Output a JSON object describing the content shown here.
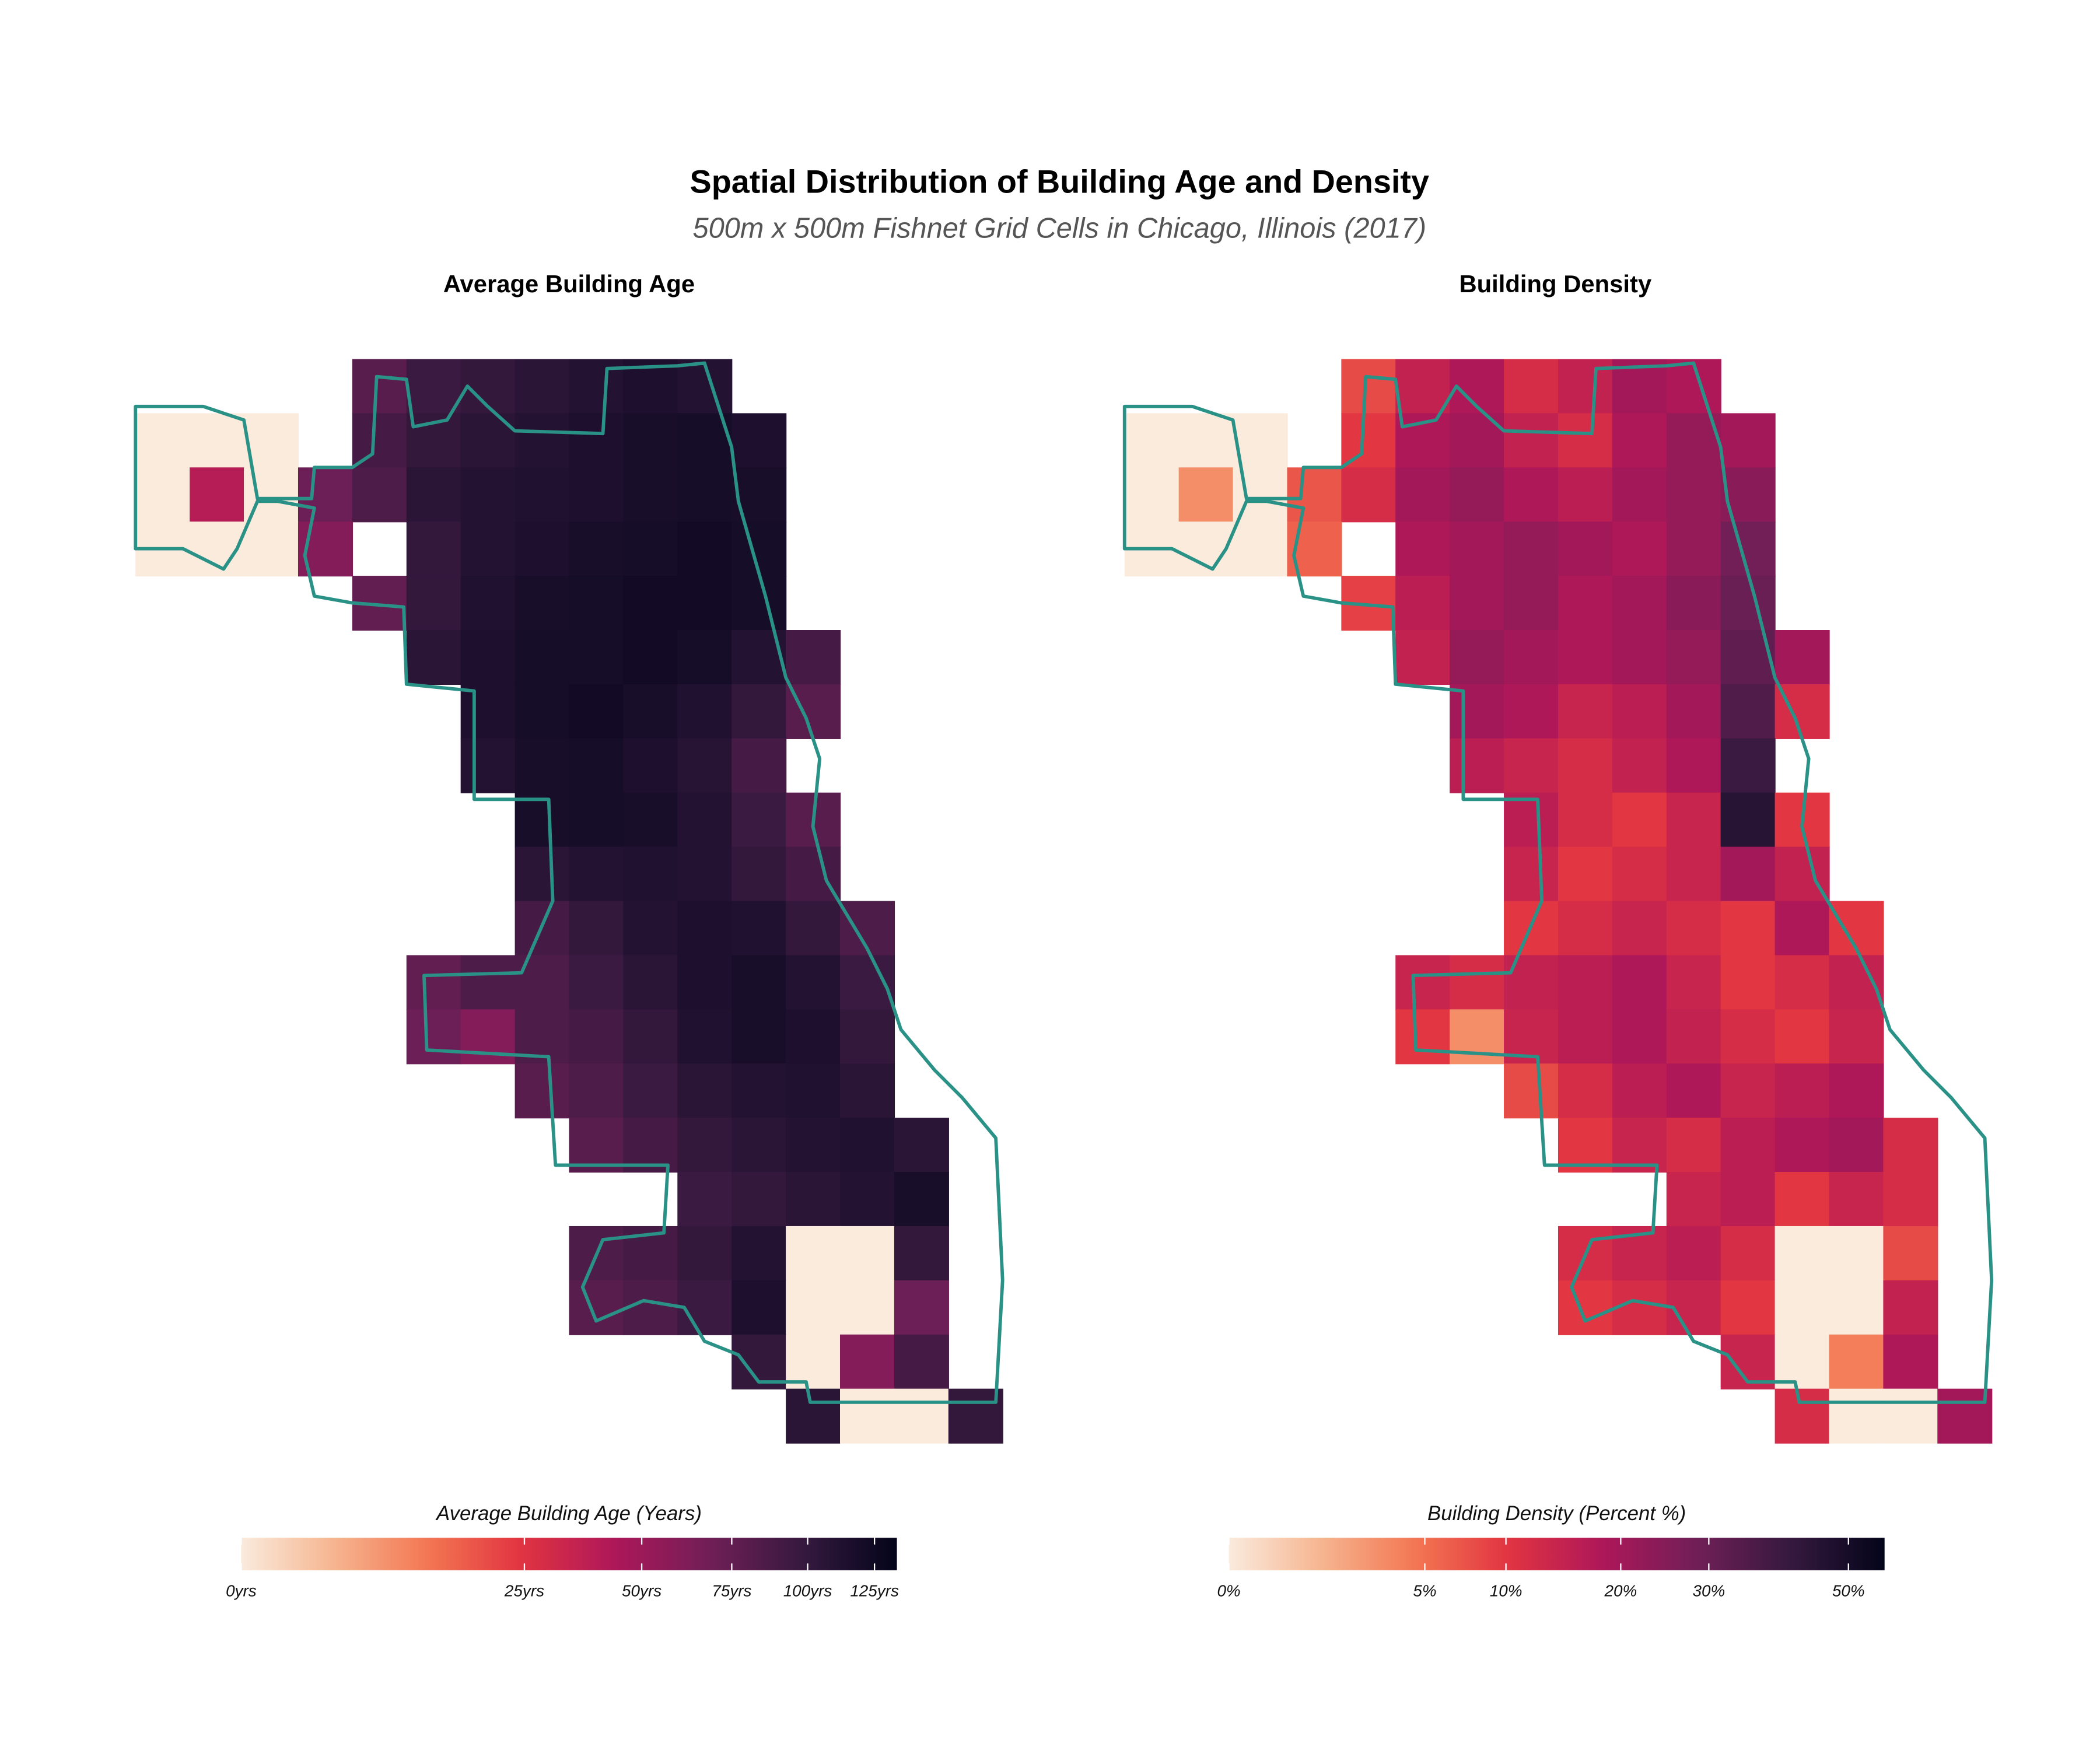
{
  "title": "Spatial Distribution of Building Age and Density",
  "subtitle": "500m x 500m Fishnet Grid Cells in Chicago, Illinois (2017)",
  "outline_color": "#2a9187",
  "maps": [
    {
      "title": "Average Building Age",
      "legend_title": "Average Building Age (Years)",
      "scale": "sqrt",
      "lim": [
        0,
        134
      ],
      "ticks": [
        {
          "value": 0,
          "label": "0yrs"
        },
        {
          "value": 25,
          "label": "25yrs"
        },
        {
          "value": 50,
          "label": "50yrs"
        },
        {
          "value": 75,
          "label": "75yrs"
        },
        {
          "value": 100,
          "label": "100yrs"
        },
        {
          "value": 125,
          "label": "125yrs"
        }
      ],
      "colormap": [
        "#faebdd",
        "#f6b48f",
        "#f37651",
        "#e13342",
        "#ad1759",
        "#701f57",
        "#35193e",
        "#03051a"
      ],
      "grid": [
        [
          null,
          null,
          null,
          null,
          80,
          95,
          100,
          105,
          110,
          115,
          110,
          null,
          null,
          null,
          null,
          null
        ],
        [
          0,
          0,
          0,
          null,
          90,
          100,
          105,
          110,
          115,
          118,
          120,
          115,
          null,
          null,
          null,
          null
        ],
        [
          0,
          40,
          0,
          70,
          85,
          105,
          110,
          112,
          115,
          118,
          120,
          118,
          null,
          null,
          null,
          null
        ],
        [
          0,
          0,
          0,
          60,
          null,
          100,
          110,
          115,
          118,
          120,
          122,
          120,
          null,
          null,
          null,
          null
        ],
        [
          null,
          null,
          null,
          null,
          75,
          100,
          112,
          118,
          120,
          122,
          122,
          120,
          null,
          null,
          null,
          null
        ],
        [
          null,
          null,
          null,
          null,
          null,
          105,
          115,
          120,
          120,
          122,
          120,
          110,
          90,
          null,
          null,
          null
        ],
        [
          null,
          null,
          null,
          null,
          null,
          null,
          115,
          120,
          122,
          118,
          112,
          100,
          80,
          null,
          null,
          null
        ],
        [
          null,
          null,
          null,
          null,
          null,
          null,
          110,
          118,
          120,
          115,
          108,
          90,
          null,
          null,
          null,
          null
        ],
        [
          null,
          null,
          null,
          null,
          null,
          null,
          null,
          118,
          120,
          118,
          110,
          95,
          80,
          null,
          null,
          null
        ],
        [
          null,
          null,
          null,
          null,
          null,
          null,
          null,
          105,
          110,
          112,
          110,
          100,
          90,
          null,
          null,
          null
        ],
        [
          null,
          null,
          null,
          null,
          null,
          null,
          null,
          90,
          100,
          110,
          115,
          112,
          100,
          85,
          null,
          null
        ],
        [
          null,
          null,
          null,
          null,
          null,
          75,
          85,
          85,
          95,
          105,
          115,
          118,
          110,
          95,
          null,
          null
        ],
        [
          null,
          null,
          null,
          null,
          null,
          70,
          60,
          85,
          90,
          100,
          112,
          118,
          115,
          100,
          null,
          null
        ],
        [
          null,
          null,
          null,
          null,
          null,
          null,
          null,
          80,
          85,
          95,
          105,
          110,
          112,
          105,
          null,
          null
        ],
        [
          null,
          null,
          null,
          null,
          null,
          null,
          null,
          null,
          80,
          90,
          100,
          105,
          110,
          112,
          105,
          null
        ],
        [
          null,
          null,
          null,
          null,
          null,
          null,
          null,
          null,
          null,
          null,
          95,
          100,
          105,
          110,
          118,
          null
        ],
        [
          null,
          null,
          null,
          null,
          null,
          null,
          null,
          null,
          85,
          90,
          100,
          110,
          0,
          0,
          100,
          null
        ],
        [
          null,
          null,
          null,
          null,
          null,
          null,
          null,
          null,
          80,
          85,
          95,
          115,
          0,
          0,
          70,
          null
        ],
        [
          null,
          null,
          null,
          null,
          null,
          null,
          null,
          null,
          null,
          null,
          null,
          100,
          0,
          60,
          90,
          null
        ],
        [
          null,
          null,
          null,
          null,
          null,
          null,
          null,
          null,
          null,
          null,
          null,
          null,
          105,
          0,
          0,
          100
        ]
      ]
    },
    {
      "title": "Building Density",
      "legend_title": "Building Density (Percent %)",
      "scale": "sqrt",
      "lim": [
        0,
        56
      ],
      "ticks": [
        {
          "value": 0,
          "label": "0%"
        },
        {
          "value": 5,
          "label": "5%"
        },
        {
          "value": 10,
          "label": "10%"
        },
        {
          "value": 20,
          "label": "20%"
        },
        {
          "value": 30,
          "label": "30%"
        },
        {
          "value": 50,
          "label": "50%"
        }
      ],
      "colormap": [
        "#faebdd",
        "#f6b48f",
        "#f37651",
        "#e13342",
        "#ad1759",
        "#701f57",
        "#35193e",
        "#03051a"
      ],
      "grid": [
        [
          null,
          null,
          null,
          null,
          8,
          15,
          18,
          12,
          15,
          20,
          18,
          null,
          null,
          null,
          null,
          null
        ],
        [
          0,
          0,
          0,
          null,
          10,
          18,
          20,
          15,
          12,
          18,
          22,
          20,
          null,
          null,
          null,
          null
        ],
        [
          0,
          3,
          0,
          7,
          12,
          20,
          22,
          18,
          16,
          20,
          22,
          24,
          null,
          null,
          null,
          null
        ],
        [
          0,
          0,
          0,
          6,
          null,
          18,
          20,
          22,
          20,
          18,
          22,
          28,
          null,
          null,
          null,
          null
        ],
        [
          null,
          null,
          null,
          null,
          9,
          16,
          20,
          22,
          18,
          20,
          24,
          30,
          null,
          null,
          null,
          null
        ],
        [
          null,
          null,
          null,
          null,
          null,
          15,
          22,
          20,
          18,
          20,
          22,
          32,
          20,
          null,
          null,
          null
        ],
        [
          null,
          null,
          null,
          null,
          null,
          null,
          20,
          18,
          14,
          16,
          20,
          35,
          12,
          null,
          null,
          null
        ],
        [
          null,
          null,
          null,
          null,
          null,
          null,
          16,
          14,
          12,
          15,
          18,
          40,
          null,
          null,
          null,
          null
        ],
        [
          null,
          null,
          null,
          null,
          null,
          null,
          null,
          16,
          12,
          10,
          14,
          45,
          10,
          null,
          null,
          null
        ],
        [
          null,
          null,
          null,
          null,
          null,
          null,
          null,
          14,
          10,
          12,
          14,
          20,
          15,
          null,
          null,
          null
        ],
        [
          null,
          null,
          null,
          null,
          null,
          null,
          null,
          10,
          12,
          14,
          12,
          10,
          18,
          10,
          null,
          null
        ],
        [
          null,
          null,
          null,
          null,
          null,
          14,
          12,
          15,
          16,
          18,
          14,
          10,
          12,
          15,
          null,
          null
        ],
        [
          null,
          null,
          null,
          null,
          null,
          10,
          3,
          14,
          16,
          18,
          15,
          12,
          10,
          14,
          null,
          null
        ],
        [
          null,
          null,
          null,
          null,
          null,
          null,
          null,
          8,
          12,
          16,
          18,
          14,
          16,
          18,
          null,
          null
        ],
        [
          null,
          null,
          null,
          null,
          null,
          null,
          null,
          null,
          10,
          14,
          12,
          16,
          18,
          20,
          12,
          null
        ],
        [
          null,
          null,
          null,
          null,
          null,
          null,
          null,
          null,
          null,
          null,
          14,
          16,
          10,
          14,
          12,
          null
        ],
        [
          null,
          null,
          null,
          null,
          null,
          null,
          null,
          null,
          12,
          14,
          16,
          12,
          0,
          0,
          8,
          null
        ],
        [
          null,
          null,
          null,
          null,
          null,
          null,
          null,
          null,
          10,
          12,
          14,
          10,
          0,
          0,
          15,
          null
        ],
        [
          null,
          null,
          null,
          null,
          null,
          null,
          null,
          null,
          null,
          null,
          null,
          14,
          0,
          4,
          18,
          null
        ],
        [
          null,
          null,
          null,
          null,
          null,
          null,
          null,
          null,
          null,
          null,
          null,
          null,
          12,
          0,
          0,
          20
        ]
      ]
    }
  ]
}
